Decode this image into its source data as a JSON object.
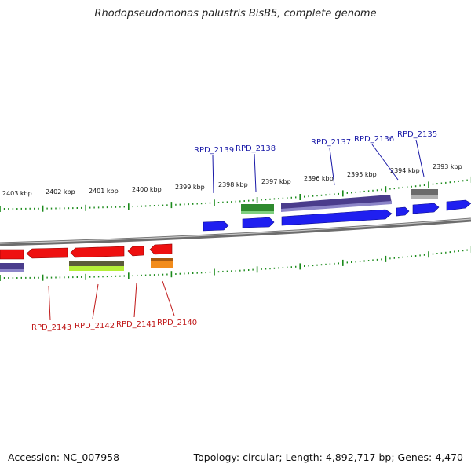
{
  "title": "Rhodopseudomonas palustris BisB5, complete genome",
  "footer": {
    "accession": "Accession: NC_007958",
    "summary": "Topology: circular; Length: 4,892,717 bp; Genes: 4,470"
  },
  "scale_labels": [
    "2403 kbp",
    "2402 kbp",
    "2401 kbp",
    "2400 kbp",
    "2399 kbp",
    "2398 kbp",
    "2397 kbp",
    "2396 kbp",
    "2395 kbp",
    "2394 kbp",
    "2393 kbp"
  ],
  "genes_top": [
    "RPD_2139",
    "RPD_2138",
    "RPD_2137",
    "RPD_2136",
    "RPD_2135"
  ],
  "genes_bottom": [
    "RPD_2143",
    "RPD_2142",
    "RPD_2141",
    "RPD_2140"
  ],
  "colors": {
    "forward_label": "#1a1aa8",
    "reverse_label": "#c01818",
    "cds_blue": "#1f1ff0",
    "cds_red": "#ee1010",
    "cds_purple": "#4a3c8c",
    "cds_green": "#2e8a2e",
    "cds_lime": "#b5ee3a",
    "cds_orange": "#f28c1c",
    "cds_grey": "#707070",
    "tick_green": "#1a8a1a",
    "backbone": "#8a8a8a"
  }
}
